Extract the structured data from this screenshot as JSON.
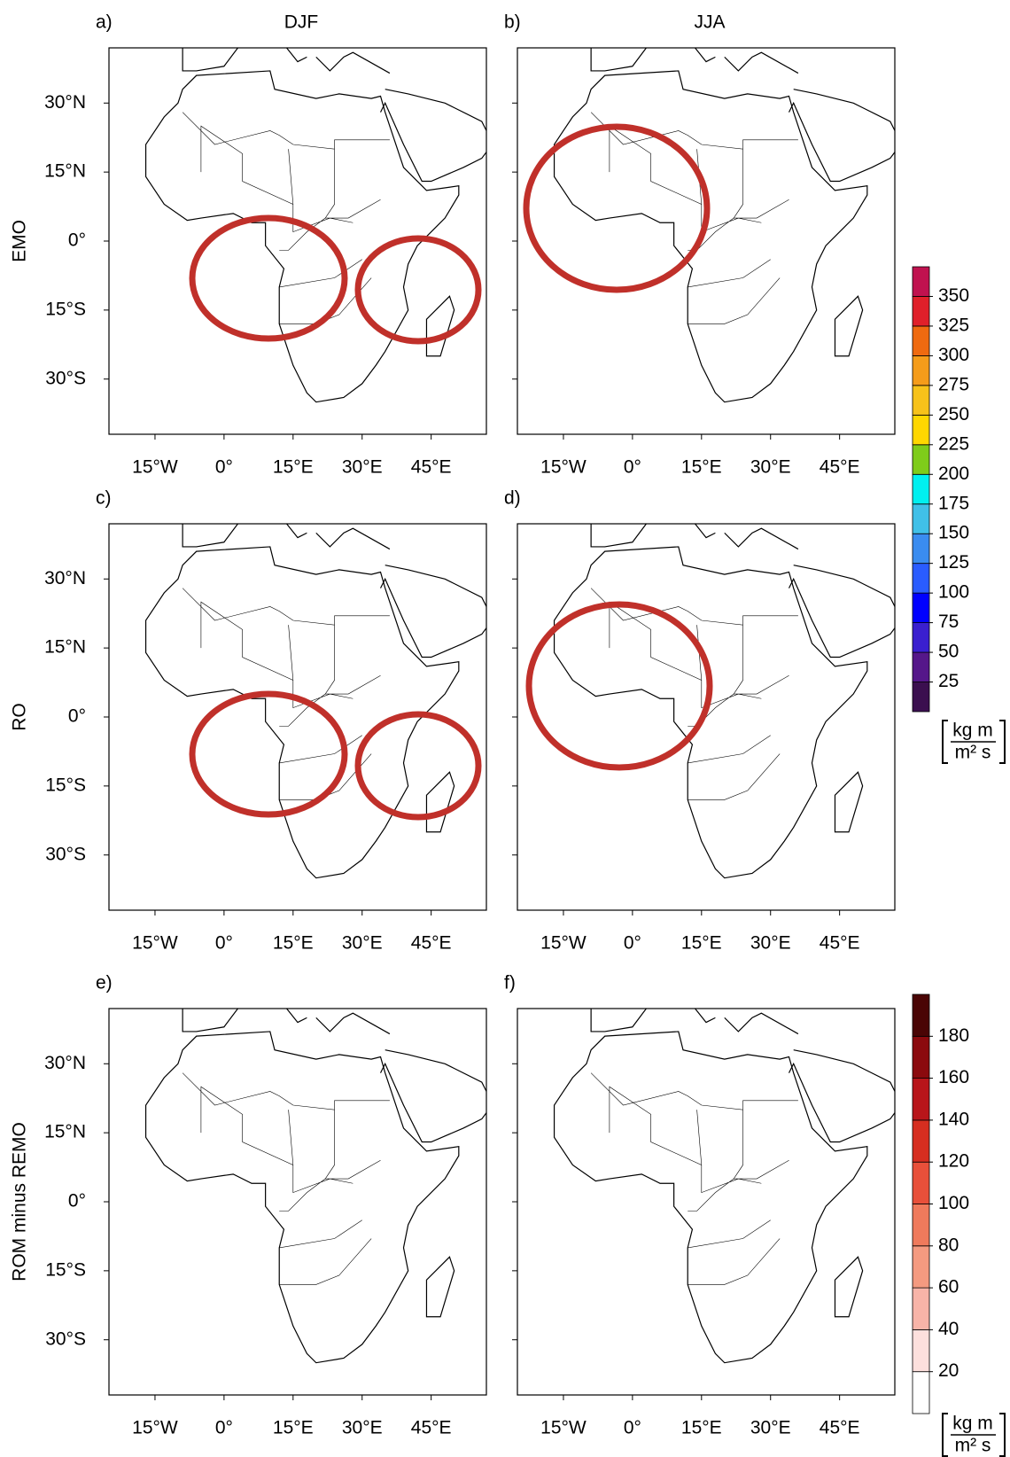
{
  "columns": [
    "DJF",
    "JJA"
  ],
  "rows": [
    "EMO",
    "RO",
    "ROM minus REMO"
  ],
  "panel_labels": [
    "a)",
    "b)",
    "c)",
    "d)",
    "e)",
    "f)"
  ],
  "map": {
    "xlim": [
      -25,
      57
    ],
    "ylim": [
      -42,
      42
    ],
    "xticks": [
      {
        "value": -15,
        "label": "15°W"
      },
      {
        "value": 0,
        "label": "0°"
      },
      {
        "value": 15,
        "label": "15°E"
      },
      {
        "value": 30,
        "label": "30°E"
      },
      {
        "value": 45,
        "label": "45°E"
      }
    ],
    "yticks": [
      {
        "value": 30,
        "label": "30°N"
      },
      {
        "value": 15,
        "label": "15°N"
      },
      {
        "value": 0,
        "label": "0°"
      },
      {
        "value": -15,
        "label": "15°S"
      },
      {
        "value": -30,
        "label": "30°S"
      }
    ]
  },
  "colorbars": [
    {
      "lim": [
        0,
        375
      ],
      "ticks": [
        25,
        50,
        75,
        100,
        125,
        150,
        175,
        200,
        225,
        250,
        275,
        300,
        325,
        350
      ],
      "colors": [
        "#3b0f4f",
        "#55178a",
        "#3a1fcf",
        "#0000ff",
        "#2a5cff",
        "#3a8cf0",
        "#40c0e8",
        "#00f0f0",
        "#7fcc1a",
        "#ffd700",
        "#f7c21a",
        "#f59c1a",
        "#ef6a10",
        "#e0202a",
        "#c0124f"
      ],
      "unit": {
        "numerator": "kg m",
        "denominator": "m² s"
      }
    },
    {
      "lim": [
        0,
        200
      ],
      "ticks": [
        20,
        40,
        60,
        80,
        100,
        120,
        140,
        160,
        180
      ],
      "colors": [
        "#ffffff",
        "#fde0dd",
        "#f8b4a8",
        "#f49a80",
        "#ef7a5c",
        "#e8503a",
        "#d62e20",
        "#b8151a",
        "#8b0a0e",
        "#4a0505"
      ],
      "unit": {
        "numerator": "kg m",
        "denominator": "m² s"
      }
    }
  ]
}
